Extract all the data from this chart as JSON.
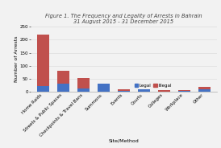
{
  "title_line1": "Figure 1. The Frequency and Legality of Arrests in Bahrain",
  "title_line2": "31 August 2015 - 31 December 2015",
  "xlabel": "Site/Method",
  "ylabel": "Number of Arrests",
  "categories": [
    "Home Raids",
    "Streets & Public Spaces",
    "Checkpoints & Travel Bans",
    "Summons",
    "Events",
    "Courts",
    "Colleges",
    "Workplace",
    "Other"
  ],
  "legal": [
    22,
    30,
    12,
    30,
    2,
    9,
    1,
    2,
    11
  ],
  "illegal": [
    198,
    50,
    42,
    0,
    8,
    0,
    5,
    3,
    9
  ],
  "ylim": [
    0,
    250
  ],
  "yticks": [
    0,
    50,
    100,
    150,
    200,
    250
  ],
  "legal_color": "#4472C4",
  "illegal_color": "#C0504D",
  "background_color": "#F2F2F2",
  "title_fontsize": 4.8,
  "axis_fontsize": 4.5,
  "tick_fontsize": 4.0,
  "legend_fontsize": 4.0
}
